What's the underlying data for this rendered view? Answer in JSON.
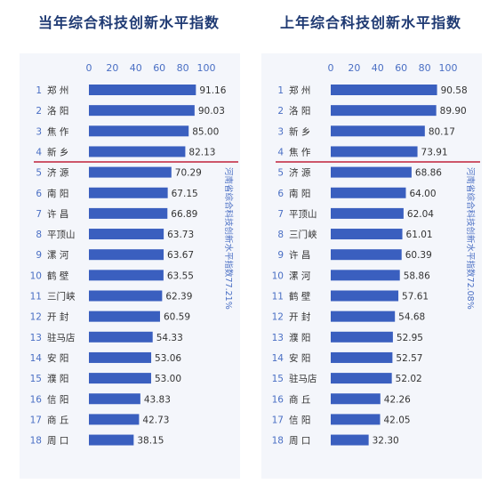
{
  "colors": {
    "bar": "#3a5fbf",
    "divider": "#c0203a",
    "title": "#1f3a73",
    "text": "#333333",
    "axis_label": "#4a6fc4",
    "annotation": "#4a6fc4",
    "box": "#f4f6fb"
  },
  "chart_data": [
    {
      "type": "bar",
      "orientation": "horizontal",
      "title": "当年综合科技创新水平指数",
      "xlabel": "",
      "ylabel": "",
      "xlim": [
        0,
        100
      ],
      "xticks": [
        0,
        20,
        40,
        60,
        80,
        100
      ],
      "ranks": [
        "1",
        "2",
        "3",
        "4",
        "5",
        "6",
        "7",
        "8",
        "9",
        "10",
        "11",
        "12",
        "13",
        "14",
        "15",
        "16",
        "17",
        "18"
      ],
      "categories": [
        "郑 州",
        "洛 阳",
        "焦 作",
        "新 乡",
        "济 源",
        "南 阳",
        "许 昌",
        "平顶山",
        "漯 河",
        "鹤 壁",
        "三门峡",
        "开 封",
        "驻马店",
        "安 阳",
        "濮 阳",
        "信 阳",
        "商 丘",
        "周 口"
      ],
      "values": [
        91.16,
        90.03,
        85.0,
        82.13,
        70.29,
        67.15,
        66.89,
        63.73,
        63.67,
        63.55,
        62.39,
        60.59,
        54.33,
        53.06,
        53.0,
        43.83,
        42.73,
        38.15
      ],
      "value_labels": [
        "91.16",
        "90.03",
        "85.00",
        "82.13",
        "70.29",
        "67.15",
        "66.89",
        "63.73",
        "63.67",
        "63.55",
        "62.39",
        "60.59",
        "54.33",
        "53.06",
        "53.00",
        "43.83",
        "42.73",
        "38.15"
      ],
      "grid": false,
      "annotation": {
        "text": "河南省综合科技创新水平指数77.21%",
        "after_rank": 4
      }
    },
    {
      "type": "bar",
      "orientation": "horizontal",
      "title": "上年综合科技创新水平指数",
      "xlabel": "",
      "ylabel": "",
      "xlim": [
        0,
        100
      ],
      "xticks": [
        0,
        20,
        40,
        60,
        80,
        100
      ],
      "ranks": [
        "1",
        "2",
        "3",
        "4",
        "5",
        "6",
        "7",
        "8",
        "9",
        "10",
        "11",
        "12",
        "13",
        "14",
        "15",
        "16",
        "17",
        "18"
      ],
      "categories": [
        "郑 州",
        "洛 阳",
        "新 乡",
        "焦 作",
        "济 源",
        "南 阳",
        "平顶山",
        "三门峡",
        "许 昌",
        "漯 河",
        "鹤 壁",
        "开 封",
        "濮 阳",
        "安 阳",
        "驻马店",
        "商 丘",
        "信 阳",
        "周 口"
      ],
      "values": [
        90.58,
        89.9,
        80.17,
        73.91,
        68.86,
        64.0,
        62.04,
        61.01,
        60.39,
        58.86,
        57.61,
        54.68,
        52.95,
        52.57,
        52.02,
        42.26,
        42.05,
        32.3
      ],
      "value_labels": [
        "90.58",
        "89.90",
        "80.17",
        "73.91",
        "68.86",
        "64.00",
        "62.04",
        "61.01",
        "60.39",
        "58.86",
        "57.61",
        "54.68",
        "52.95",
        "52.57",
        "52.02",
        "42.26",
        "42.05",
        "32.30"
      ],
      "grid": false,
      "annotation": {
        "text": "河南省综合科技创新水平指数72.08%",
        "after_rank": 4
      }
    }
  ]
}
